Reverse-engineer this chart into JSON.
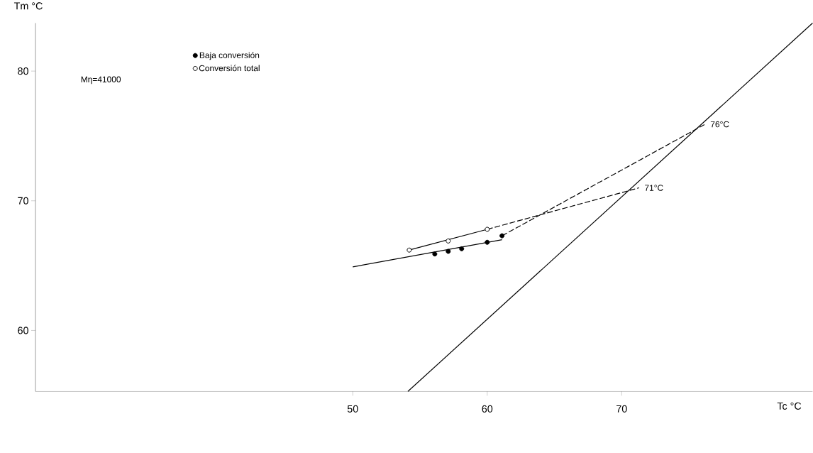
{
  "chart_data": {
    "type": "line",
    "xlabel": "Tc °C",
    "ylabel": "Tm °C",
    "xlim": [
      26.4,
      84.2
    ],
    "ylim": [
      55.3,
      83.7
    ],
    "xticks": [
      50,
      60,
      70
    ],
    "yticks": [
      60,
      70,
      80
    ],
    "legend": "top left",
    "grid": false,
    "annotations": [
      "Mη=41000",
      {
        "text": "76°C",
        "x": 76.2,
        "y": 75.9
      },
      {
        "text": "71°C",
        "x": 71.3,
        "y": 71
      }
    ],
    "series": [
      {
        "color": "#000000",
        "marker": "none",
        "line_style": "solid",
        "x": [
          54.1,
          84.2
        ],
        "values": [
          55.3,
          83.7
        ]
      },
      {
        "color": "#000000",
        "marker": "none",
        "line_style": "solid",
        "x": [
          50,
          61.1
        ],
        "values": [
          64.9,
          67.0
        ]
      },
      {
        "color": "#000000",
        "marker": "none",
        "line_style": "dashed",
        "x": [
          61.1,
          76.2
        ],
        "values": [
          67.3,
          75.9
        ]
      },
      {
        "color": "#000000",
        "marker": "none",
        "line_style": "solid",
        "x": [
          54.2,
          60
        ],
        "values": [
          66.2,
          67.8
        ]
      },
      {
        "color": "#000000",
        "marker": "none",
        "line_style": "dashed",
        "x": [
          60,
          71.3
        ],
        "values": [
          67.8,
          71
        ]
      },
      {
        "type": "scatter",
        "name": "Baja conversión",
        "color": "#000000",
        "marker": "circle",
        "x": [
          56.1,
          57.1,
          58.1,
          60,
          61.1
        ],
        "values": [
          65.9,
          66.1,
          66.3,
          66.8,
          67.3
        ]
      },
      {
        "type": "scatter",
        "name": "Conversión total",
        "color": "#ffffff",
        "marker": "circle",
        "x": [
          54.2,
          57.1,
          60
        ],
        "values": [
          66.2,
          66.9,
          67.8
        ]
      }
    ]
  }
}
